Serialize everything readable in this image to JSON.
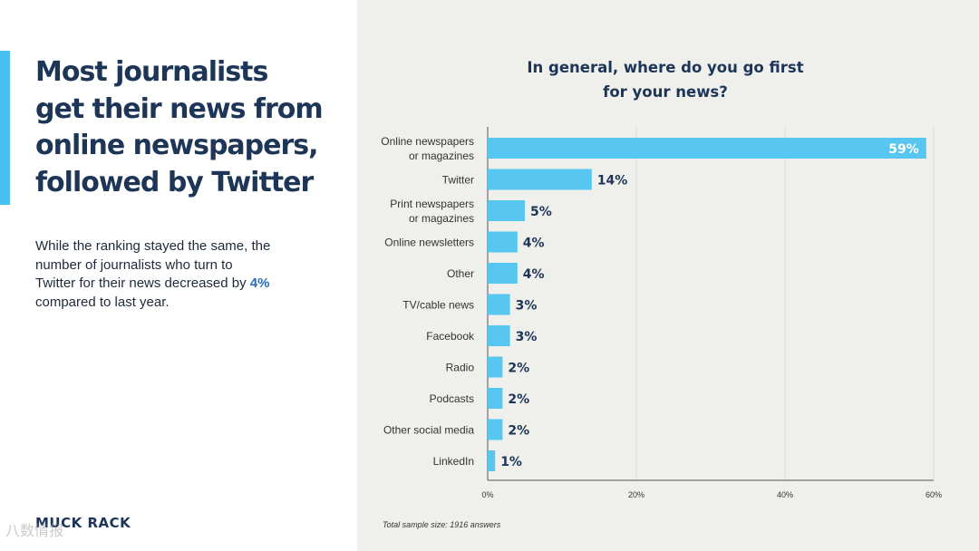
{
  "headline": {
    "lines": [
      "Most journalists",
      "get their news from",
      "online newspapers,",
      "followed by Twitter"
    ]
  },
  "body": {
    "part1": "While the ranking stayed the same, the number of journalists who turn to Twitter for their news decreased by ",
    "highlight": "4%",
    "part2": " compared to last year."
  },
  "logo": "MUCK RACK",
  "watermark": "八数情报",
  "colors": {
    "bar": "#57c7f2",
    "headline": "#1d3557",
    "accent": "#46c1f0",
    "panel": "#efefeb",
    "highlight": "#2a6dbf"
  },
  "footnote": "Total sample size: 1916 answers",
  "chart_data": {
    "type": "bar",
    "orientation": "horizontal",
    "title_lines": [
      "In general, where do you go first",
      "for your news?"
    ],
    "categories": [
      [
        "Online newspapers",
        "or magazines"
      ],
      [
        "Twitter"
      ],
      [
        "Print newspapers",
        "or magazines"
      ],
      [
        "Online newsletters"
      ],
      [
        "Other"
      ],
      [
        "TV/cable news"
      ],
      [
        "Facebook"
      ],
      [
        "Radio"
      ],
      [
        "Podcasts"
      ],
      [
        "Other social media"
      ],
      [
        "LinkedIn"
      ]
    ],
    "values": [
      59,
      14,
      5,
      4,
      4,
      3,
      3,
      2,
      2,
      2,
      1
    ],
    "value_labels": [
      "59%",
      "14%",
      "5%",
      "4%",
      "4%",
      "3%",
      "3%",
      "2%",
      "2%",
      "2%",
      "1%"
    ],
    "xlim": [
      0,
      60
    ],
    "xticks": [
      0,
      20,
      40,
      60
    ],
    "xtick_labels": [
      "0%",
      "20%",
      "40%",
      "60%"
    ],
    "grid": "vertical"
  }
}
